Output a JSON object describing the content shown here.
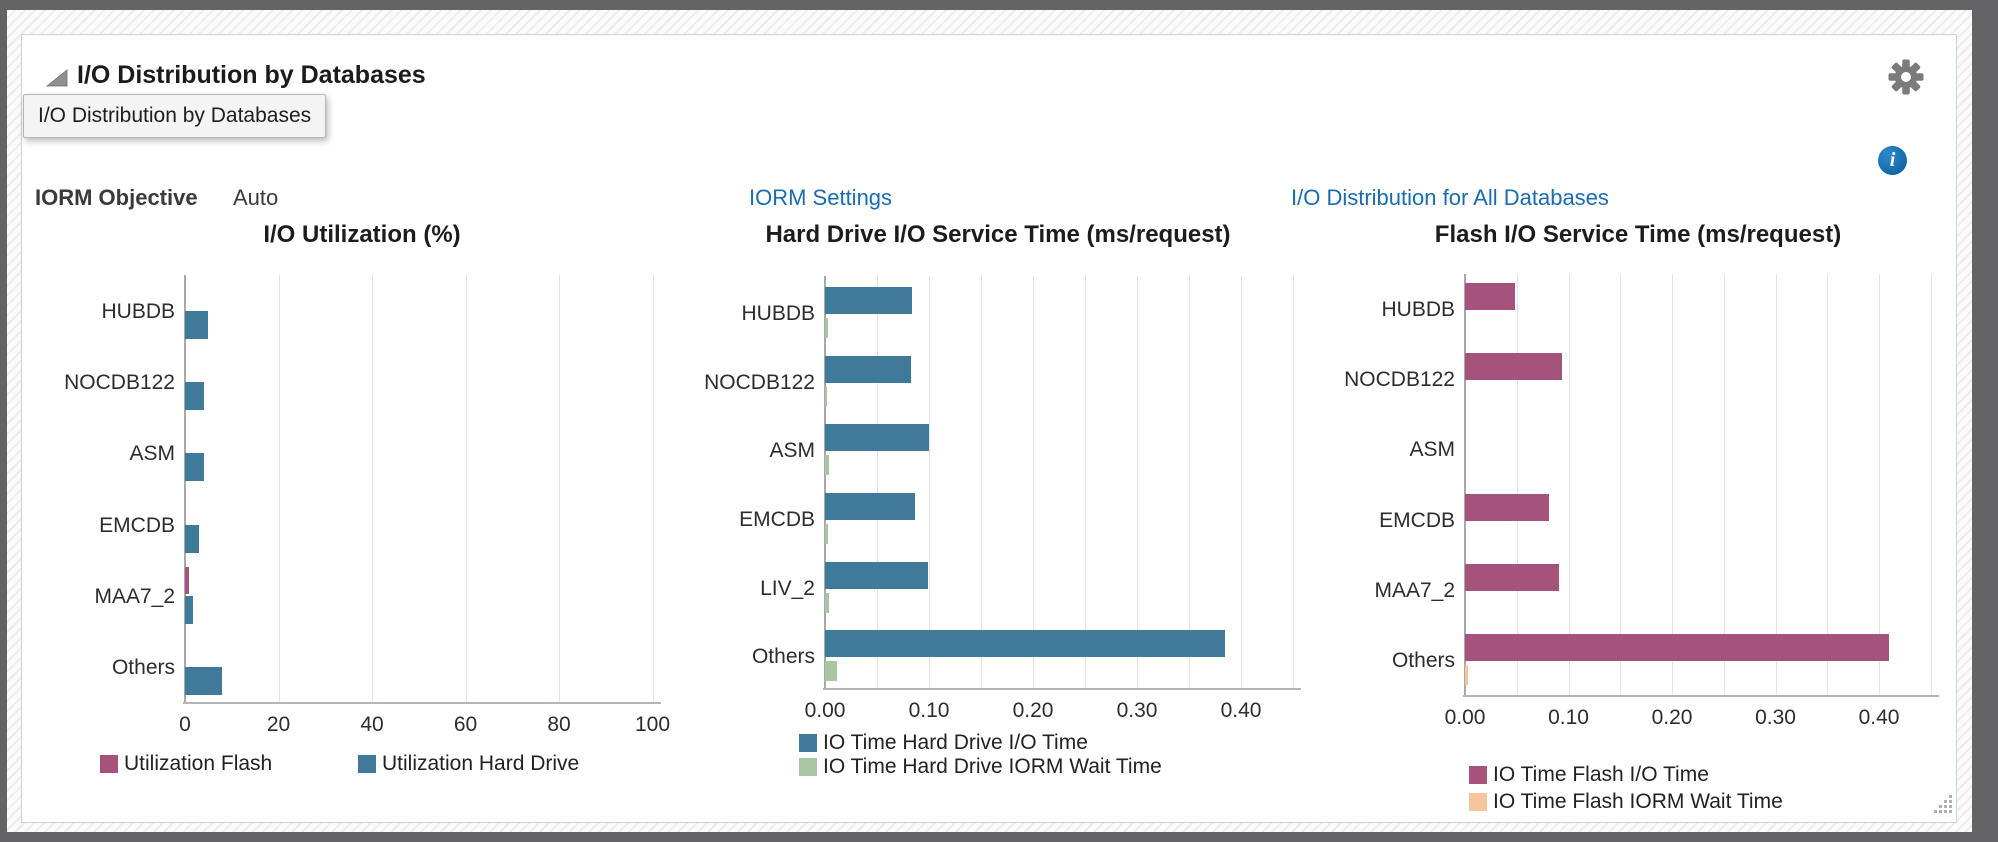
{
  "panel": {
    "title": "I/O Distribution by Databases",
    "tooltip": "I/O Distribution by Databases",
    "iorm_objective_label": "IORM Objective",
    "iorm_objective_value": "Auto",
    "link_iorm_settings": "IORM Settings",
    "link_io_distribution": "I/O Distribution for All Databases"
  },
  "colors": {
    "hard_drive_blue": "#3F7A9B",
    "flash_magenta": "#A5537D",
    "iorm_wait_green": "#A8C6A2",
    "flash_wait_peach": "#F5C69C",
    "link_blue": "#1A6CB0",
    "info_blue": "#1473B5"
  },
  "chart_data": [
    {
      "type": "bar",
      "orientation": "horizontal",
      "title": "I/O Utilization (%)",
      "categories": [
        "HUBDB",
        "NOCDB122",
        "ASM",
        "EMCDB",
        "MAA7_2",
        "Others"
      ],
      "series": [
        {
          "name": "Utilization Flash",
          "color": "#A5537D",
          "values": [
            0,
            0,
            0,
            0,
            0.8,
            0
          ]
        },
        {
          "name": "Utilization Hard Drive",
          "color": "#3F7A9B",
          "values": [
            5,
            4,
            4,
            3,
            1.8,
            8
          ]
        }
      ],
      "xlim": [
        0,
        100
      ],
      "xticks": [
        "0",
        "20",
        "40",
        "60",
        "80",
        "100"
      ],
      "grid_step": 20,
      "legend_position": "bottom"
    },
    {
      "type": "bar",
      "orientation": "horizontal",
      "title": "Hard Drive I/O Service Time (ms/request)",
      "categories": [
        "HUBDB",
        "NOCDB122",
        "ASM",
        "EMCDB",
        "LIV_2",
        "Others"
      ],
      "series": [
        {
          "name": "IO Time Hard Drive I/O Time",
          "color": "#3F7A9B",
          "values": [
            0.084,
            0.083,
            0.1,
            0.087,
            0.099,
            0.385
          ]
        },
        {
          "name": "IO Time Hard Drive IORM Wait Time",
          "color": "#A8C6A2",
          "values": [
            0.003,
            0.002,
            0.004,
            0.003,
            0.004,
            0.012
          ]
        }
      ],
      "xlim": [
        0,
        0.45
      ],
      "xticks": [
        "0.00",
        "0.10",
        "0.20",
        "0.30",
        "0.40"
      ],
      "grid_step": 0.05,
      "legend_position": "bottom"
    },
    {
      "type": "bar",
      "orientation": "horizontal",
      "title": "Flash I/O Service Time (ms/request)",
      "categories": [
        "HUBDB",
        "NOCDB122",
        "ASM",
        "EMCDB",
        "MAA7_2",
        "Others"
      ],
      "series": [
        {
          "name": "IO Time Flash I/O Time",
          "color": "#A5537D",
          "values": [
            0.048,
            0.094,
            0,
            0.081,
            0.091,
            0.41
          ]
        },
        {
          "name": "IO Time Flash IORM Wait Time",
          "color": "#F5C69C",
          "values": [
            0,
            0,
            0,
            0,
            0,
            0.003
          ]
        }
      ],
      "xlim": [
        0,
        0.45
      ],
      "xticks": [
        "0.00",
        "0.10",
        "0.20",
        "0.30",
        "0.40"
      ],
      "grid_step": 0.05,
      "legend_position": "bottom"
    }
  ]
}
